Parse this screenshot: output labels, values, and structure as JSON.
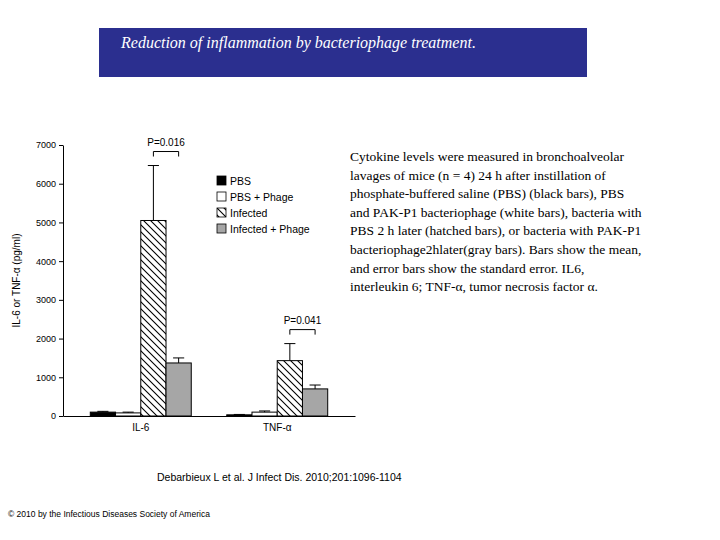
{
  "chart_data": {
    "type": "bar",
    "title": "Reduction of inflammation by bacteriophage treatment.",
    "y_label": "IL-6 or TNF-α (pg/ml)",
    "categories": [
      "IL-6",
      "TNF-α"
    ],
    "series": [
      {
        "name": "PBS",
        "color": "#000000",
        "values": [
          100,
          30
        ],
        "errors": [
          20,
          10
        ]
      },
      {
        "name": "PBS + Phage",
        "color": "#ffffff",
        "values": [
          80,
          100
        ],
        "errors": [
          20,
          30
        ]
      },
      {
        "name": "Infected",
        "color": "#000000",
        "marker": "hatched",
        "values": [
          5050,
          1430
        ],
        "errors": [
          1420,
          440
        ]
      },
      {
        "name": "Infected + Phage",
        "color": "#a6a6a6",
        "values": [
          1370,
          700
        ],
        "errors": [
          130,
          100
        ]
      }
    ],
    "ylim": [
      0,
      7000
    ],
    "yticks": [
      0,
      1000,
      2000,
      3000,
      4000,
      5000,
      6000,
      7000
    ],
    "grid": false,
    "legend": "upper right",
    "annotations": [
      {
        "text": "P=0.016",
        "category": "IL-6",
        "series": [
          "Infected",
          "Infected + Phage"
        ]
      },
      {
        "text": "P=0.041",
        "category": "TNF-α",
        "series": [
          "Infected",
          "Infected + Phage"
        ]
      }
    ]
  },
  "slide": {
    "caption": [
      "Cytokine levels were measured in bronchoalveolar",
      "lavages of mice (n = 4) 24 h after instillation of",
      "phosphate-buffered saline (PBS) (black bars), PBS",
      "and PAK-P1 bacteriophage (white bars), bacteria with",
      "PBS 2 h later (hatched bars), or bacteria with PAK-P1",
      "bacteriophage2hlater(gray bars). Bars show the mean,",
      "and error bars show the standard error. IL6,",
      "interleukin 6; TNF-α, tumor necrosis factor α."
    ],
    "citation": "Debarbieux L et al. J Infect Dis. 2010;201:1096-1104",
    "copyright": "© 2010 by the Infectious Diseases Society of America"
  }
}
